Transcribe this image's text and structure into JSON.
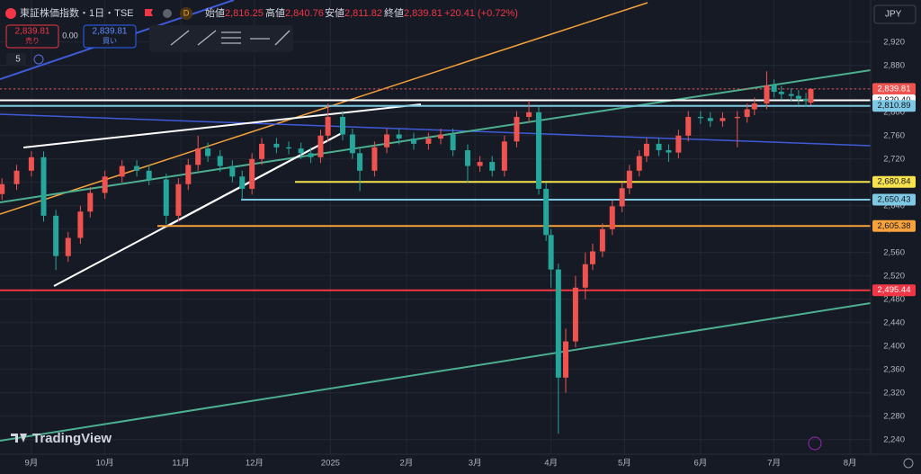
{
  "header": {
    "symbol": "東証株価指数・1日・TSE",
    "badge": "D",
    "open_label": "始値",
    "open": "2,816.25",
    "high_label": "高値",
    "high": "2,840.76",
    "low_label": "安値",
    "low": "2,811.82",
    "close_label": "終値",
    "close": "2,839.81",
    "change": "+20.41 (+0.72%)"
  },
  "trade": {
    "sell_price": "2,839.81",
    "sell": "売り",
    "spread": "0.00",
    "buy_price": "2,839.81",
    "buy": "買い"
  },
  "indicator_count": "5",
  "currency": "JPY",
  "brand": "TradingView",
  "chart_data": {
    "type": "candlestick",
    "up_color": "#ef5350",
    "down_color": "#26a69a",
    "grid": true,
    "xlim": [
      -12.8,
      342.4
    ],
    "ylim": [
      2215,
      2992
    ],
    "xticks": [
      {
        "value": 0,
        "label": "9月"
      },
      {
        "value": 30,
        "label": "10月"
      },
      {
        "value": 61,
        "label": "11月"
      },
      {
        "value": 91,
        "label": "12月"
      },
      {
        "value": 122,
        "label": "2025"
      },
      {
        "value": 153,
        "label": "2月"
      },
      {
        "value": 181,
        "label": "3月"
      },
      {
        "value": 212,
        "label": "4月"
      },
      {
        "value": 242,
        "label": "5月"
      },
      {
        "value": 273,
        "label": "6月"
      },
      {
        "value": 303,
        "label": "7月"
      },
      {
        "value": 334,
        "label": "8月"
      }
    ],
    "yticks": [
      {
        "value": 2240,
        "label": "2,240"
      },
      {
        "value": 2280,
        "label": "2,280"
      },
      {
        "value": 2320,
        "label": "2,320"
      },
      {
        "value": 2360,
        "label": "2,360"
      },
      {
        "value": 2400,
        "label": "2,400"
      },
      {
        "value": 2440,
        "label": "2,440"
      },
      {
        "value": 2480,
        "label": "2,480"
      },
      {
        "value": 2520,
        "label": "2,520"
      },
      {
        "value": 2560,
        "label": "2,560"
      },
      {
        "value": 2600,
        "label": "2,600"
      },
      {
        "value": 2640,
        "label": "2,640"
      },
      {
        "value": 2680,
        "label": "2,680"
      },
      {
        "value": 2720,
        "label": "2,720"
      },
      {
        "value": 2760,
        "label": "2,760"
      },
      {
        "value": 2800,
        "label": "2,800"
      },
      {
        "value": 2840,
        "label": "2,840"
      },
      {
        "value": 2880,
        "label": "2,880"
      },
      {
        "value": 2920,
        "label": "2,920"
      }
    ],
    "price_lines": [
      {
        "value": 2839.81,
        "label": "2,839.81",
        "color": "#ef5350"
      },
      {
        "value": 2820.4,
        "label": "2,820.40",
        "color": "#ffffff"
      },
      {
        "value": 2810.89,
        "label": "2,810.89",
        "color": "#7ec8e3"
      },
      {
        "value": 2680.84,
        "label": "2,680.84",
        "color": "#f5e24c"
      },
      {
        "value": 2650.43,
        "label": "2,650.43",
        "color": "#7ec8e3"
      },
      {
        "value": 2605.38,
        "label": "2,605.38",
        "color": "#f7a23b"
      },
      {
        "value": 2495.44,
        "label": "2,495.44",
        "color": "#f23645"
      }
    ],
    "candles": [
      {
        "x": -12,
        "open": 2660,
        "high": 2687,
        "low": 2650,
        "close": 2677
      },
      {
        "x": -6,
        "open": 2677,
        "high": 2710,
        "low": 2667,
        "close": 2700
      },
      {
        "x": 0,
        "open": 2700,
        "high": 2733,
        "low": 2690,
        "close": 2723
      },
      {
        "x": 5,
        "open": 2723,
        "high": 2733,
        "low": 2613,
        "close": 2623
      },
      {
        "x": 10,
        "open": 2623,
        "high": 2633,
        "low": 2530,
        "close": 2554
      },
      {
        "x": 15,
        "open": 2554,
        "high": 2595,
        "low": 2544,
        "close": 2585
      },
      {
        "x": 20,
        "open": 2585,
        "high": 2640,
        "low": 2575,
        "close": 2630
      },
      {
        "x": 24,
        "open": 2630,
        "high": 2672,
        "low": 2620,
        "close": 2662
      },
      {
        "x": 30,
        "open": 2662,
        "high": 2700,
        "low": 2652,
        "close": 2690
      },
      {
        "x": 37,
        "open": 2690,
        "high": 2718,
        "low": 2680,
        "close": 2708
      },
      {
        "x": 43,
        "open": 2708,
        "high": 2718,
        "low": 2690,
        "close": 2700
      },
      {
        "x": 48,
        "open": 2700,
        "high": 2710,
        "low": 2675,
        "close": 2685
      },
      {
        "x": 55,
        "open": 2685,
        "high": 2695,
        "low": 2608,
        "close": 2623
      },
      {
        "x": 60,
        "open": 2623,
        "high": 2687,
        "low": 2613,
        "close": 2677
      },
      {
        "x": 64,
        "open": 2677,
        "high": 2720,
        "low": 2667,
        "close": 2710
      },
      {
        "x": 68,
        "open": 2710,
        "high": 2760,
        "low": 2700,
        "close": 2738
      },
      {
        "x": 72,
        "open": 2738,
        "high": 2748,
        "low": 2715,
        "close": 2725
      },
      {
        "x": 77,
        "open": 2725,
        "high": 2735,
        "low": 2698,
        "close": 2708
      },
      {
        "x": 82,
        "open": 2708,
        "high": 2718,
        "low": 2680,
        "close": 2690
      },
      {
        "x": 86,
        "open": 2690,
        "high": 2700,
        "low": 2650,
        "close": 2669
      },
      {
        "x": 90,
        "open": 2669,
        "high": 2730,
        "low": 2659,
        "close": 2720
      },
      {
        "x": 94,
        "open": 2720,
        "high": 2756,
        "low": 2710,
        "close": 2746
      },
      {
        "x": 100,
        "open": 2746,
        "high": 2756,
        "low": 2730,
        "close": 2740
      },
      {
        "x": 105,
        "open": 2740,
        "high": 2750,
        "low": 2728,
        "close": 2738
      },
      {
        "x": 110,
        "open": 2738,
        "high": 2748,
        "low": 2720,
        "close": 2730
      },
      {
        "x": 114,
        "open": 2730,
        "high": 2740,
        "low": 2713,
        "close": 2723
      },
      {
        "x": 118,
        "open": 2723,
        "high": 2770,
        "low": 2713,
        "close": 2760
      },
      {
        "x": 121,
        "open": 2760,
        "high": 2815,
        "low": 2750,
        "close": 2792
      },
      {
        "x": 127,
        "open": 2792,
        "high": 2802,
        "low": 2752,
        "close": 2762
      },
      {
        "x": 131,
        "open": 2762,
        "high": 2772,
        "low": 2720,
        "close": 2730
      },
      {
        "x": 134,
        "open": 2730,
        "high": 2740,
        "low": 2665,
        "close": 2700
      },
      {
        "x": 140,
        "open": 2700,
        "high": 2750,
        "low": 2690,
        "close": 2740
      },
      {
        "x": 145,
        "open": 2740,
        "high": 2772,
        "low": 2730,
        "close": 2762
      },
      {
        "x": 150,
        "open": 2762,
        "high": 2772,
        "low": 2745,
        "close": 2755
      },
      {
        "x": 156,
        "open": 2755,
        "high": 2765,
        "low": 2736,
        "close": 2746
      },
      {
        "x": 162,
        "open": 2746,
        "high": 2765,
        "low": 2736,
        "close": 2755
      },
      {
        "x": 167,
        "open": 2755,
        "high": 2772,
        "low": 2745,
        "close": 2762
      },
      {
        "x": 172,
        "open": 2762,
        "high": 2772,
        "low": 2725,
        "close": 2735
      },
      {
        "x": 178,
        "open": 2735,
        "high": 2745,
        "low": 2680,
        "close": 2708
      },
      {
        "x": 183,
        "open": 2708,
        "high": 2725,
        "low": 2698,
        "close": 2715
      },
      {
        "x": 188,
        "open": 2715,
        "high": 2725,
        "low": 2690,
        "close": 2700
      },
      {
        "x": 193,
        "open": 2700,
        "high": 2760,
        "low": 2690,
        "close": 2750
      },
      {
        "x": 198,
        "open": 2750,
        "high": 2802,
        "low": 2740,
        "close": 2792
      },
      {
        "x": 203,
        "open": 2792,
        "high": 2820,
        "low": 2782,
        "close": 2800
      },
      {
        "x": 207,
        "open": 2800,
        "high": 2810,
        "low": 2659,
        "close": 2669
      },
      {
        "x": 210,
        "open": 2669,
        "high": 2679,
        "low": 2580,
        "close": 2590
      },
      {
        "x": 212,
        "open": 2590,
        "high": 2600,
        "low": 2500,
        "close": 2531
      },
      {
        "x": 215,
        "open": 2531,
        "high": 2541,
        "low": 2250,
        "close": 2346
      },
      {
        "x": 218,
        "open": 2346,
        "high": 2430,
        "low": 2320,
        "close": 2408
      },
      {
        "x": 222,
        "open": 2408,
        "high": 2520,
        "low": 2398,
        "close": 2500
      },
      {
        "x": 226,
        "open": 2500,
        "high": 2560,
        "low": 2480,
        "close": 2540
      },
      {
        "x": 229,
        "open": 2540,
        "high": 2575,
        "low": 2530,
        "close": 2562
      },
      {
        "x": 233,
        "open": 2562,
        "high": 2610,
        "low": 2552,
        "close": 2600
      },
      {
        "x": 237,
        "open": 2600,
        "high": 2649,
        "low": 2590,
        "close": 2639
      },
      {
        "x": 241,
        "open": 2639,
        "high": 2680,
        "low": 2629,
        "close": 2670
      },
      {
        "x": 244,
        "open": 2670,
        "high": 2710,
        "low": 2660,
        "close": 2700
      },
      {
        "x": 248,
        "open": 2700,
        "high": 2735,
        "low": 2690,
        "close": 2725
      },
      {
        "x": 251,
        "open": 2725,
        "high": 2756,
        "low": 2715,
        "close": 2746
      },
      {
        "x": 256,
        "open": 2746,
        "high": 2756,
        "low": 2725,
        "close": 2735
      },
      {
        "x": 260,
        "open": 2735,
        "high": 2745,
        "low": 2715,
        "close": 2731
      },
      {
        "x": 264,
        "open": 2731,
        "high": 2770,
        "low": 2721,
        "close": 2760
      },
      {
        "x": 268,
        "open": 2760,
        "high": 2802,
        "low": 2750,
        "close": 2792
      },
      {
        "x": 273,
        "open": 2792,
        "high": 2802,
        "low": 2780,
        "close": 2790
      },
      {
        "x": 277,
        "open": 2790,
        "high": 2800,
        "low": 2775,
        "close": 2785
      },
      {
        "x": 282,
        "open": 2785,
        "high": 2800,
        "low": 2775,
        "close": 2790
      },
      {
        "x": 288,
        "open": 2790,
        "high": 2802,
        "low": 2740,
        "close": 2792
      },
      {
        "x": 292,
        "open": 2792,
        "high": 2815,
        "low": 2782,
        "close": 2805
      },
      {
        "x": 295,
        "open": 2805,
        "high": 2825,
        "low": 2795,
        "close": 2815
      },
      {
        "x": 300,
        "open": 2815,
        "high": 2870,
        "low": 2805,
        "close": 2846
      },
      {
        "x": 303,
        "open": 2846,
        "high": 2856,
        "low": 2825,
        "close": 2835
      },
      {
        "x": 306,
        "open": 2835,
        "high": 2845,
        "low": 2821,
        "close": 2831
      },
      {
        "x": 310,
        "open": 2831,
        "high": 2841,
        "low": 2818,
        "close": 2828
      },
      {
        "x": 313,
        "open": 2828,
        "high": 2838,
        "low": 2813,
        "close": 2823
      },
      {
        "x": 316,
        "open": 2823,
        "high": 2833,
        "low": 2809,
        "close": 2819
      },
      {
        "x": 318,
        "open": 2816.25,
        "high": 2840.76,
        "low": 2811.82,
        "close": 2839.81
      }
    ]
  }
}
